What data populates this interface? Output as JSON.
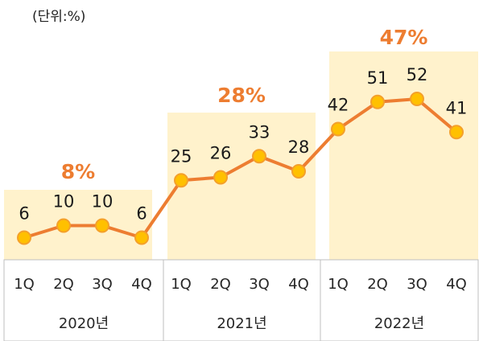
{
  "chart_data": {
    "type": "line",
    "unit_label": "(단위:%)",
    "categories": [
      "1Q",
      "2Q",
      "3Q",
      "4Q",
      "1Q",
      "2Q",
      "3Q",
      "4Q",
      "1Q",
      "2Q",
      "3Q",
      "4Q"
    ],
    "groups": [
      {
        "year": "2020년",
        "annual_value": "8%"
      },
      {
        "year": "2021년",
        "annual_value": "28%"
      },
      {
        "year": "2022년",
        "annual_value": "47%"
      }
    ],
    "series": [
      {
        "name": "quarterly",
        "values": [
          6,
          10,
          10,
          6,
          25,
          26,
          33,
          28,
          42,
          51,
          52,
          41
        ]
      }
    ],
    "ylim": [
      0,
      60
    ],
    "colors": {
      "line": "#ED7D31",
      "marker_fill": "#FFC000",
      "marker_stroke": "#F4A02A",
      "highlight": "#FFF2CC",
      "annual_text": "#ED7D31",
      "border": "#BFBFBF"
    }
  }
}
